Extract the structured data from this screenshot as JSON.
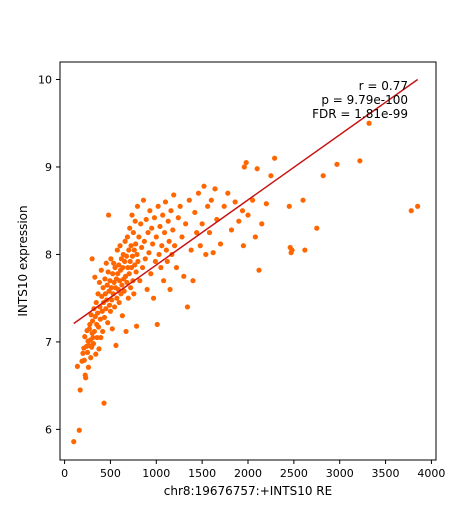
{
  "chart_data": {
    "type": "scatter",
    "title": "",
    "xlabel": "chr8:19676757:+INTS10 RE",
    "ylabel": "INTS10 expression",
    "xlim": [
      -50,
      4050
    ],
    "ylim": [
      5.65,
      10.2
    ],
    "xticks": [
      "0",
      "500",
      "1000",
      "1500",
      "2000",
      "2500",
      "3000",
      "3500",
      "4000"
    ],
    "yticks": [
      "6",
      "7",
      "8",
      "9",
      "10"
    ],
    "grid": false,
    "legend": "none",
    "annotations": [
      "r = 0.77",
      "p = 9.79e-100",
      "FDR = 1.81e-99"
    ],
    "annotation_placement": "top-right",
    "colors": {
      "points": "#ff6600",
      "fit_line": "#c81414"
    },
    "fit_line": {
      "x": [
        100,
        3850
      ],
      "y": [
        7.21,
        10.0
      ]
    },
    "series": [
      {
        "points": [
          [
            100,
            5.86
          ],
          [
            140,
            6.72
          ],
          [
            160,
            5.99
          ],
          [
            170,
            6.45
          ],
          [
            190,
            6.78
          ],
          [
            200,
            6.87
          ],
          [
            210,
            6.93
          ],
          [
            215,
            6.79
          ],
          [
            220,
            7.06
          ],
          [
            225,
            6.62
          ],
          [
            230,
            6.59
          ],
          [
            240,
            6.95
          ],
          [
            245,
            7.13
          ],
          [
            250,
            6.88
          ],
          [
            255,
            7.01
          ],
          [
            260,
            6.71
          ],
          [
            265,
            6.96
          ],
          [
            270,
            7.15
          ],
          [
            275,
            7.2
          ],
          [
            280,
            7.02
          ],
          [
            285,
            6.82
          ],
          [
            290,
            7.31
          ],
          [
            295,
            6.94
          ],
          [
            300,
            7.1
          ],
          [
            300,
            7.95
          ],
          [
            305,
            7.24
          ],
          [
            310,
            7.05
          ],
          [
            315,
            6.98
          ],
          [
            320,
            7.38
          ],
          [
            325,
            7.12
          ],
          [
            330,
            7.74
          ],
          [
            335,
            7.29
          ],
          [
            340,
            6.86
          ],
          [
            345,
            7.45
          ],
          [
            350,
            7.2
          ],
          [
            355,
            7.05
          ],
          [
            360,
            7.33
          ],
          [
            365,
            7.55
          ],
          [
            370,
            7.17
          ],
          [
            375,
            6.92
          ],
          [
            380,
            7.68
          ],
          [
            385,
            7.4
          ],
          [
            390,
            7.26
          ],
          [
            395,
            7.05
          ],
          [
            400,
            7.82
          ],
          [
            405,
            7.52
          ],
          [
            410,
            7.35
          ],
          [
            415,
            7.12
          ],
          [
            420,
            7.62
          ],
          [
            425,
            7.45
          ],
          [
            430,
            6.3
          ],
          [
            435,
            7.28
          ],
          [
            440,
            7.72
          ],
          [
            445,
            7.55
          ],
          [
            450,
            7.38
          ],
          [
            455,
            7.9
          ],
          [
            460,
            7.48
          ],
          [
            465,
            7.65
          ],
          [
            470,
            7.22
          ],
          [
            475,
            7.8
          ],
          [
            480,
            8.45
          ],
          [
            485,
            7.58
          ],
          [
            490,
            7.42
          ],
          [
            495,
            7.7
          ],
          [
            500,
            7.35
          ],
          [
            505,
            7.95
          ],
          [
            510,
            7.62
          ],
          [
            515,
            7.48
          ],
          [
            520,
            7.15
          ],
          [
            525,
            7.78
          ],
          [
            530,
            7.55
          ],
          [
            535,
            7.9
          ],
          [
            540,
            7.68
          ],
          [
            545,
            7.4
          ],
          [
            550,
            7.85
          ],
          [
            555,
            7.62
          ],
          [
            560,
            6.96
          ],
          [
            565,
            7.72
          ],
          [
            570,
            7.5
          ],
          [
            575,
            8.05
          ],
          [
            580,
            7.78
          ],
          [
            585,
            7.6
          ],
          [
            590,
            7.88
          ],
          [
            595,
            7.45
          ],
          [
            600,
            7.7
          ],
          [
            605,
            8.1
          ],
          [
            610,
            7.82
          ],
          [
            615,
            7.55
          ],
          [
            620,
            7.95
          ],
          [
            625,
            7.65
          ],
          [
            630,
            7.3
          ],
          [
            635,
            7.85
          ],
          [
            640,
            8.0
          ],
          [
            645,
            7.72
          ],
          [
            650,
            7.58
          ],
          [
            655,
            7.92
          ],
          [
            660,
            8.15
          ],
          [
            665,
            7.75
          ],
          [
            670,
            7.12
          ],
          [
            675,
            7.98
          ],
          [
            680,
            7.68
          ],
          [
            685,
            8.2
          ],
          [
            690,
            7.85
          ],
          [
            695,
            7.5
          ],
          [
            700,
            8.05
          ],
          [
            705,
            7.78
          ],
          [
            710,
            8.3
          ],
          [
            715,
            7.92
          ],
          [
            720,
            7.62
          ],
          [
            725,
            8.1
          ],
          [
            730,
            7.85
          ],
          [
            735,
            8.45
          ],
          [
            740,
            7.98
          ],
          [
            745,
            7.7
          ],
          [
            750,
            8.25
          ],
          [
            755,
            7.55
          ],
          [
            760,
            8.05
          ],
          [
            765,
            7.88
          ],
          [
            770,
            8.38
          ],
          [
            775,
            8.12
          ],
          [
            780,
            7.8
          ],
          [
            785,
            7.18
          ],
          [
            790,
            8.0
          ],
          [
            795,
            8.55
          ],
          [
            800,
            7.92
          ],
          [
            810,
            8.2
          ],
          [
            820,
            7.7
          ],
          [
            830,
            8.35
          ],
          [
            840,
            8.08
          ],
          [
            850,
            7.85
          ],
          [
            860,
            8.62
          ],
          [
            870,
            8.15
          ],
          [
            880,
            7.95
          ],
          [
            890,
            8.4
          ],
          [
            900,
            7.6
          ],
          [
            910,
            8.25
          ],
          [
            920,
            8.02
          ],
          [
            930,
            8.5
          ],
          [
            940,
            7.78
          ],
          [
            950,
            8.3
          ],
          [
            960,
            8.12
          ],
          [
            970,
            7.5
          ],
          [
            980,
            8.42
          ],
          [
            990,
            7.92
          ],
          [
            1000,
            8.2
          ],
          [
            1010,
            7.2
          ],
          [
            1020,
            8.55
          ],
          [
            1030,
            8.0
          ],
          [
            1040,
            8.32
          ],
          [
            1050,
            7.85
          ],
          [
            1060,
            8.1
          ],
          [
            1070,
            8.45
          ],
          [
            1080,
            7.7
          ],
          [
            1090,
            8.25
          ],
          [
            1100,
            8.6
          ],
          [
            1110,
            8.05
          ],
          [
            1120,
            7.92
          ],
          [
            1130,
            8.38
          ],
          [
            1140,
            8.15
          ],
          [
            1150,
            7.6
          ],
          [
            1160,
            8.5
          ],
          [
            1170,
            8.0
          ],
          [
            1180,
            8.28
          ],
          [
            1190,
            8.68
          ],
          [
            1200,
            8.1
          ],
          [
            1220,
            7.85
          ],
          [
            1240,
            8.42
          ],
          [
            1260,
            8.55
          ],
          [
            1280,
            8.2
          ],
          [
            1300,
            7.75
          ],
          [
            1320,
            8.35
          ],
          [
            1340,
            7.4
          ],
          [
            1360,
            8.62
          ],
          [
            1380,
            8.05
          ],
          [
            1400,
            7.7
          ],
          [
            1420,
            8.48
          ],
          [
            1440,
            8.25
          ],
          [
            1460,
            8.7
          ],
          [
            1480,
            8.1
          ],
          [
            1500,
            8.35
          ],
          [
            1520,
            8.78
          ],
          [
            1540,
            8.0
          ],
          [
            1560,
            8.55
          ],
          [
            1580,
            8.25
          ],
          [
            1600,
            8.62
          ],
          [
            1620,
            8.02
          ],
          [
            1640,
            8.75
          ],
          [
            1660,
            8.4
          ],
          [
            1700,
            8.12
          ],
          [
            1740,
            8.55
          ],
          [
            1780,
            8.7
          ],
          [
            1820,
            8.28
          ],
          [
            1860,
            8.6
          ],
          [
            1900,
            8.38
          ],
          [
            1940,
            8.5
          ],
          [
            1950,
            8.1
          ],
          [
            1960,
            9.0
          ],
          [
            1980,
            9.05
          ],
          [
            2000,
            8.45
          ],
          [
            2050,
            8.62
          ],
          [
            2080,
            8.2
          ],
          [
            2100,
            8.98
          ],
          [
            2120,
            7.82
          ],
          [
            2150,
            8.35
          ],
          [
            2200,
            8.58
          ],
          [
            2250,
            8.9
          ],
          [
            2290,
            9.1
          ],
          [
            2450,
            8.55
          ],
          [
            2460,
            8.08
          ],
          [
            2470,
            8.02
          ],
          [
            2480,
            8.05
          ],
          [
            2600,
            8.62
          ],
          [
            2620,
            8.05
          ],
          [
            2750,
            8.3
          ],
          [
            2820,
            8.9
          ],
          [
            2970,
            9.03
          ],
          [
            3220,
            9.07
          ],
          [
            3320,
            9.5
          ],
          [
            3780,
            8.5
          ],
          [
            3850,
            8.55
          ]
        ]
      }
    ]
  }
}
